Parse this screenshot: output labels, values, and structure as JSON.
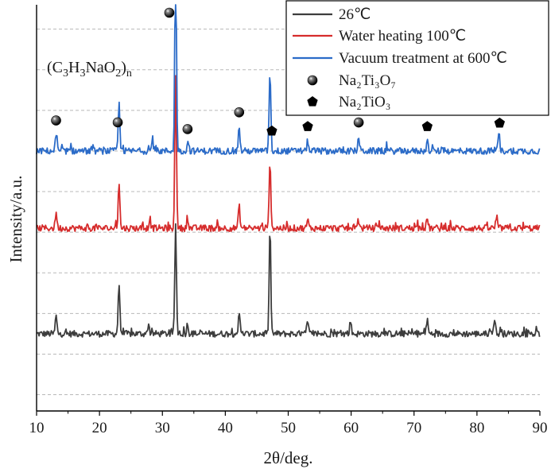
{
  "chart_data": {
    "type": "line",
    "xlabel": "2θ/deg.",
    "ylabel": "Intensity/a.u.",
    "xlim": [
      10,
      90
    ],
    "x_ticks": [
      "10",
      "20",
      "30",
      "40",
      "50",
      "60",
      "70",
      "80",
      "90"
    ],
    "grid": "horizontal dashed",
    "legend_position": "top-right",
    "annotation": "(C3H3NaO2)n",
    "series": [
      {
        "name": "26℃",
        "color": "#3d3d3d",
        "baseline": 0.0,
        "peaks": [
          [
            13.1,
            0.9
          ],
          [
            23.1,
            2.5
          ],
          [
            27.8,
            0.5
          ],
          [
            32.1,
            5.3
          ],
          [
            34.0,
            0.5
          ],
          [
            42.2,
            1.1
          ],
          [
            47.1,
            5.0
          ],
          [
            53.1,
            0.6
          ],
          [
            59.9,
            0.6
          ],
          [
            72.1,
            0.7
          ],
          [
            82.8,
            0.8
          ]
        ]
      },
      {
        "name": "Water heating 100℃",
        "color": "#d62c2c",
        "baseline": 5.2,
        "peaks": [
          [
            13.1,
            0.8
          ],
          [
            23.1,
            2.3
          ],
          [
            28.0,
            0.5
          ],
          [
            32.1,
            7.2
          ],
          [
            34.0,
            0.5
          ],
          [
            42.2,
            1.1
          ],
          [
            47.1,
            3.4
          ],
          [
            53.1,
            0.4
          ],
          [
            61.1,
            0.5
          ],
          [
            72.1,
            0.5
          ],
          [
            83.1,
            0.5
          ]
        ]
      },
      {
        "name": "Vacuum treatment at 600℃",
        "color": "#2b6bc8",
        "baseline": 9.0,
        "peaks": [
          [
            13.1,
            0.8
          ],
          [
            23.1,
            2.3
          ],
          [
            28.4,
            0.5
          ],
          [
            32.1,
            9.8
          ],
          [
            34.1,
            0.5
          ],
          [
            42.2,
            1.2
          ],
          [
            47.1,
            4.0
          ],
          [
            53.1,
            0.5
          ],
          [
            61.2,
            0.7
          ],
          [
            72.1,
            0.5
          ],
          [
            83.5,
            0.9
          ]
        ]
      }
    ],
    "markers": [
      {
        "name": "Na₂Ti₃O₇",
        "symbol": "sphere",
        "x": [
          13.1,
          22.9,
          31.1,
          34.0,
          42.2,
          61.2
        ]
      },
      {
        "name": "Na₂TiO₃",
        "symbol": "pentagon",
        "x": [
          47.4,
          53.1,
          72.1,
          83.6
        ]
      }
    ]
  }
}
